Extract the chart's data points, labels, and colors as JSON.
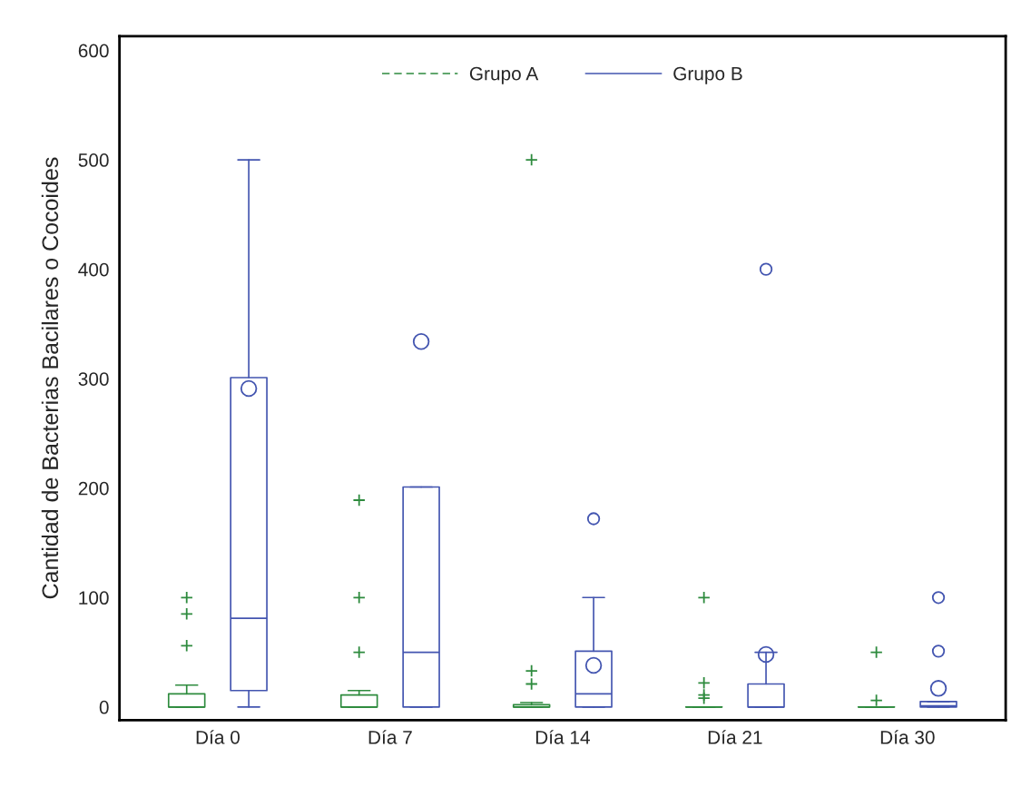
{
  "chart_data": {
    "type": "box",
    "ylabel": "Cantidad de Bacterias Bacilares o Cocoides",
    "categories": [
      "Día 0",
      "Día 7",
      "Día 14",
      "Día 21",
      "Día 30"
    ],
    "ylim": [
      -12,
      613
    ],
    "yticks": [
      0,
      100,
      200,
      300,
      400,
      500,
      600
    ],
    "grid": false,
    "legend": "top",
    "tick_labels": "xy",
    "series": [
      {
        "name": "Grupo A",
        "color": "#2e8b3e",
        "line_style": "dashed",
        "marker": "cross",
        "boxes": [
          {
            "low": 0,
            "q1": 0,
            "median": 0,
            "q3": 12,
            "high": 20,
            "outliers": [
              100,
              85,
              56
            ]
          },
          {
            "low": 0,
            "q1": 0,
            "median": 0,
            "q3": 11,
            "high": 15,
            "outliers": [
              189,
              100,
              50
            ]
          },
          {
            "low": 0,
            "q1": 0,
            "median": 0,
            "q3": 2,
            "high": 4,
            "outliers": [
              500,
              33,
              21
            ]
          },
          {
            "low": 0,
            "q1": 0,
            "median": 0,
            "q3": 0,
            "high": 0,
            "outliers": [
              100,
              22,
              11,
              8
            ]
          },
          {
            "low": 0,
            "q1": 0,
            "median": 0,
            "q3": 0,
            "high": 0,
            "outliers": [
              50,
              6
            ]
          }
        ]
      },
      {
        "name": "Grupo B",
        "color": "#4355b0",
        "line_style": "solid",
        "marker": "circle",
        "boxes": [
          {
            "low": 0,
            "q1": 15,
            "median": 81,
            "q3": 301,
            "high": 500,
            "mean": 291
          },
          {
            "low": 0,
            "q1": 0,
            "median": 50,
            "q3": 201,
            "high": 201,
            "mean": 334
          },
          {
            "low": 0,
            "q1": 0,
            "median": 12,
            "q3": 51,
            "high": 100,
            "mean": 38,
            "outliers": [
              172
            ]
          },
          {
            "low": 0,
            "q1": 0,
            "median": 0,
            "q3": 21,
            "high": 50,
            "mean": 48,
            "outliers": [
              400
            ]
          },
          {
            "low": 0,
            "q1": 0,
            "median": 1,
            "q3": 5,
            "high": 5,
            "mean": 17,
            "outliers": [
              100,
              51
            ]
          }
        ]
      }
    ]
  }
}
